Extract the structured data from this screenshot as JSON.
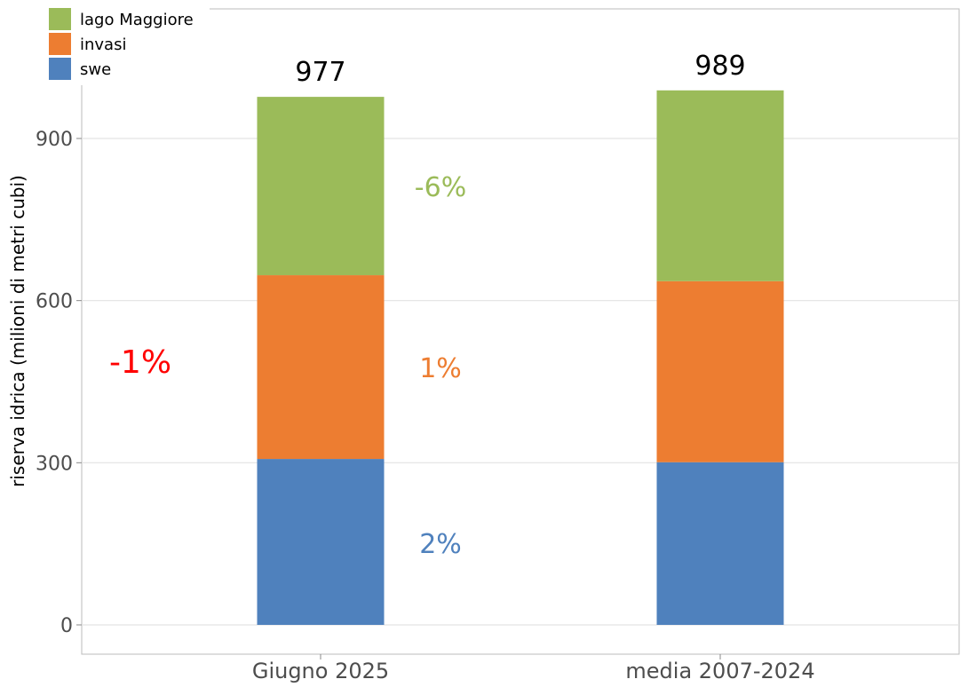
{
  "chart_data": {
    "type": "bar",
    "stacked": true,
    "categories": [
      "Giugno 2025",
      "media 2007-2024"
    ],
    "series": [
      {
        "name": "swe",
        "values": [
          307,
          301
        ],
        "color": "#4F81BD"
      },
      {
        "name": "invasi",
        "values": [
          340,
          335
        ],
        "color": "#ED7D31"
      },
      {
        "name": "lago Maggiore",
        "values": [
          330,
          353
        ],
        "color": "#9BBB59"
      }
    ],
    "totals": [
      "977",
      "989"
    ],
    "annotations": [
      {
        "text": "-6%",
        "series": "lago Maggiore",
        "color": "#9BBB59"
      },
      {
        "text": "1%",
        "series": "invasi",
        "color": "#ED7D31"
      },
      {
        "text": "2%",
        "series": "swe",
        "color": "#4F81BD"
      },
      {
        "text": "-1%",
        "series": "total",
        "color": "#FF0000"
      }
    ],
    "ylabel": "riserva idrica (milioni di metri cubi)",
    "xlabel": "",
    "yticks": [
      0,
      300,
      600,
      900
    ],
    "ylim": [
      -53,
      1140
    ],
    "grid": true,
    "legend": "top-left"
  }
}
